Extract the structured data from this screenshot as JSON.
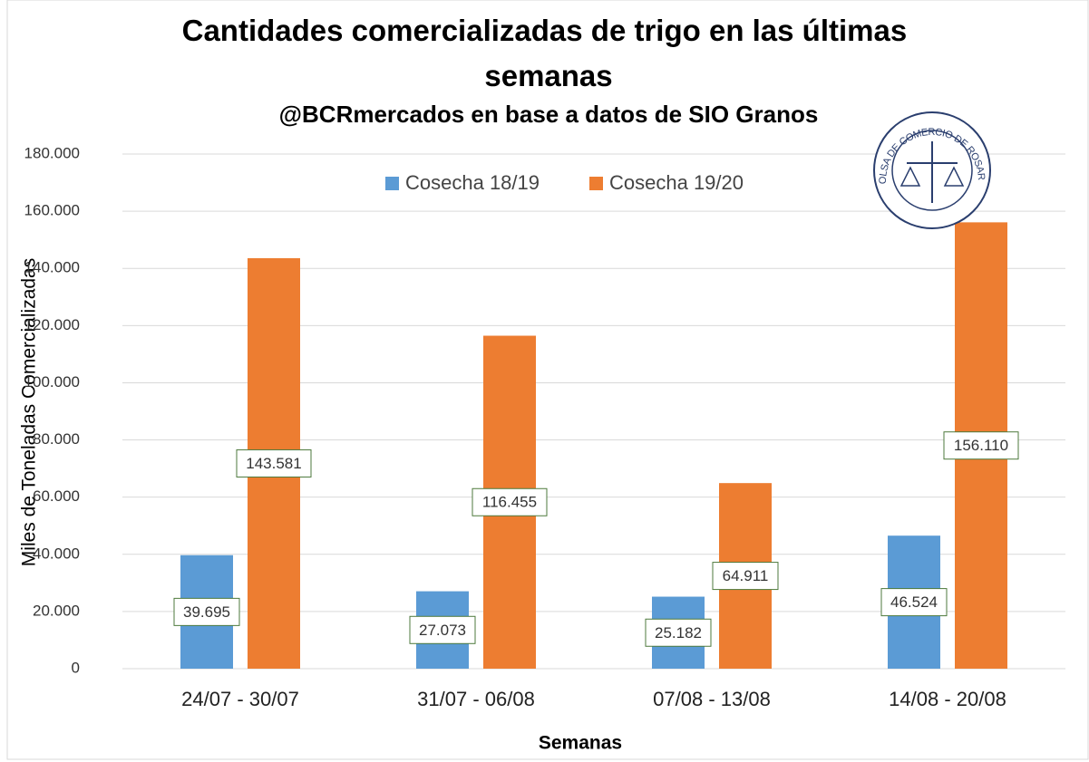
{
  "chart_data": {
    "type": "bar",
    "title": "Cantidades comercializadas de trigo en las últimas semanas",
    "subtitle": "@BCRmercados en base a datos de SIO Granos",
    "logo_text": "BOLSA DE COMERCIO DE ROSARIO",
    "x_label": "Semanas",
    "y_label": "Miles de Toneladas Comercializadas",
    "categories": [
      "24/07 - 30/07",
      "31/07 - 06/08",
      "07/08 - 13/08",
      "14/08 - 20/08"
    ],
    "series": [
      {
        "name": "Cosecha 18/19",
        "color": "#5b9bd5",
        "values": [
          39695,
          27073,
          25182,
          46524
        ],
        "value_labels": [
          "39.695",
          "27.073",
          "25.182",
          "46.524"
        ]
      },
      {
        "name": "Cosecha 19/20",
        "color": "#ed7d31",
        "values": [
          143581,
          116455,
          64911,
          156110
        ],
        "value_labels": [
          "143.581",
          "116.455",
          "64.911",
          "156.110"
        ]
      }
    ],
    "ylim": [
      0,
      180000
    ],
    "yticks": [
      {
        "value": 0,
        "label": "0"
      },
      {
        "value": 20000,
        "label": "20.000"
      },
      {
        "value": 40000,
        "label": "40.000"
      },
      {
        "value": 60000,
        "label": "60.000"
      },
      {
        "value": 80000,
        "label": "80.000"
      },
      {
        "value": 100000,
        "label": "100.000"
      },
      {
        "value": 120000,
        "label": "120.000"
      },
      {
        "value": 140000,
        "label": "140.000"
      },
      {
        "value": 160000,
        "label": "160.000"
      },
      {
        "value": 180000,
        "label": "180.000"
      }
    ],
    "grid": true,
    "legend": "top"
  }
}
